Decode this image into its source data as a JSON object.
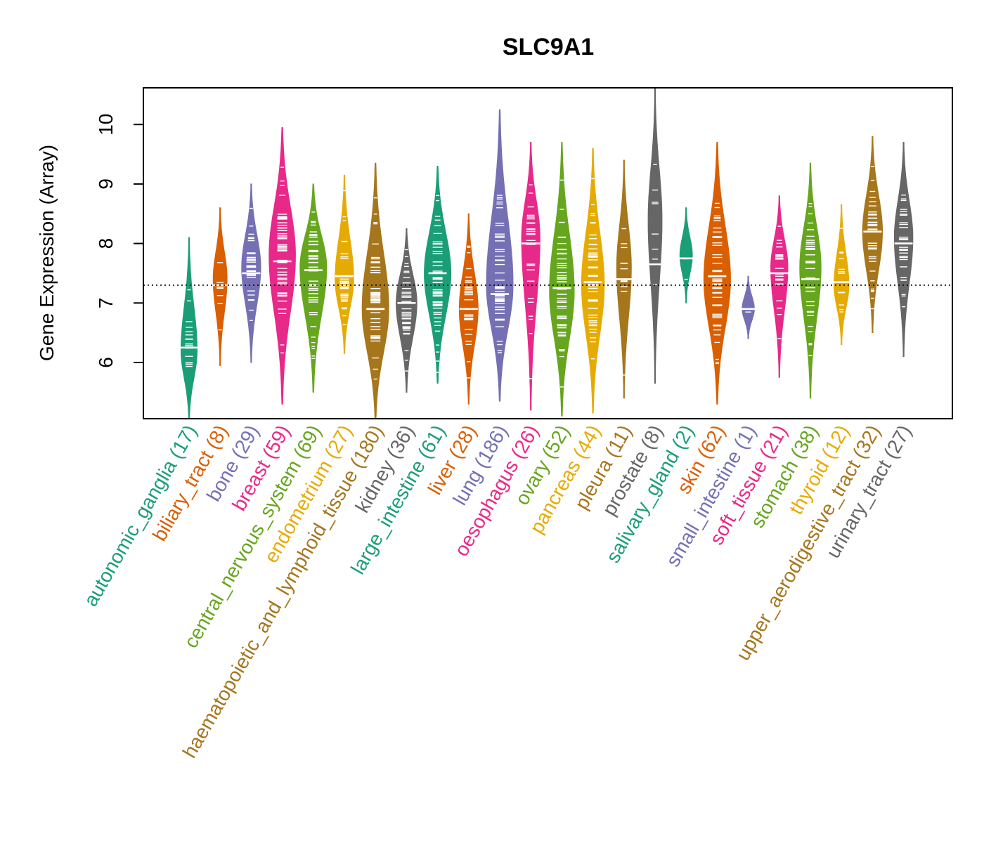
{
  "chart_data": {
    "type": "violin",
    "title": "SLC9A1",
    "ylabel": "Gene Expression (Array)",
    "xlabel": "",
    "ylim": [
      5.0,
      10.6
    ],
    "yticks": [
      6,
      7,
      8,
      9,
      10
    ],
    "reference_line": 7.3,
    "reference_line_style": "dotted",
    "grid": false,
    "legend": "none",
    "categories": [
      {
        "name": "autonomic_ganglia",
        "n": 17,
        "color": "#1B9E77",
        "median": 6.25,
        "min": 5.0,
        "max": 8.1,
        "peak": 6.2
      },
      {
        "name": "biliary_tract",
        "n": 8,
        "color": "#D95F02",
        "median": 7.3,
        "min": 5.95,
        "max": 8.6,
        "peak": 7.4
      },
      {
        "name": "bone",
        "n": 29,
        "color": "#7570B3",
        "median": 7.5,
        "min": 6.0,
        "max": 9.0,
        "peak": 7.6
      },
      {
        "name": "breast",
        "n": 59,
        "color": "#E7298A",
        "median": 7.7,
        "min": 5.3,
        "max": 9.95,
        "peak": 7.8
      },
      {
        "name": "central_nervous_system",
        "n": 69,
        "color": "#66A61E",
        "median": 7.55,
        "min": 5.5,
        "max": 9.0,
        "peak": 7.6
      },
      {
        "name": "endometrium",
        "n": 27,
        "color": "#E6AB02",
        "median": 7.45,
        "min": 6.15,
        "max": 9.15,
        "peak": 7.4
      },
      {
        "name": "haematopoietic_and_lymphoid_tissue",
        "n": 180,
        "color": "#A6761D",
        "median": 6.9,
        "min": 5.0,
        "max": 9.35,
        "peak": 6.9
      },
      {
        "name": "kidney",
        "n": 36,
        "color": "#666666",
        "median": 7.0,
        "min": 5.5,
        "max": 8.25,
        "peak": 7.0
      },
      {
        "name": "large_intestine",
        "n": 61,
        "color": "#1B9E77",
        "median": 7.5,
        "min": 5.65,
        "max": 9.3,
        "peak": 7.5
      },
      {
        "name": "liver",
        "n": 28,
        "color": "#D95F02",
        "median": 6.9,
        "min": 5.3,
        "max": 8.5,
        "peak": 6.9
      },
      {
        "name": "lung",
        "n": 186,
        "color": "#7570B3",
        "median": 7.15,
        "min": 5.35,
        "max": 10.25,
        "peak": 7.3
      },
      {
        "name": "oesophagus",
        "n": 26,
        "color": "#E7298A",
        "median": 8.0,
        "min": 5.2,
        "max": 9.7,
        "peak": 8.1
      },
      {
        "name": "ovary",
        "n": 52,
        "color": "#66A61E",
        "median": 7.25,
        "min": 5.1,
        "max": 9.7,
        "peak": 7.2
      },
      {
        "name": "pancreas",
        "n": 44,
        "color": "#E6AB02",
        "median": 7.35,
        "min": 5.15,
        "max": 9.6,
        "peak": 7.3
      },
      {
        "name": "pleura",
        "n": 11,
        "color": "#A6761D",
        "median": 7.4,
        "min": 5.4,
        "max": 9.4,
        "peak": 7.6
      },
      {
        "name": "prostate",
        "n": 8,
        "color": "#666666",
        "median": 7.65,
        "min": 5.65,
        "max": 10.6,
        "peak": 8.4
      },
      {
        "name": "salivary_gland",
        "n": 2,
        "color": "#1B9E77",
        "median": 7.75,
        "min": 7.0,
        "max": 8.6,
        "peak": 7.8
      },
      {
        "name": "skin",
        "n": 62,
        "color": "#D95F02",
        "median": 7.45,
        "min": 5.3,
        "max": 9.7,
        "peak": 7.4
      },
      {
        "name": "small_intestine",
        "n": 1,
        "color": "#7570B3",
        "median": 6.9,
        "min": 6.4,
        "max": 7.45,
        "peak": 6.9
      },
      {
        "name": "soft_tissue",
        "n": 21,
        "color": "#E7298A",
        "median": 7.5,
        "min": 5.75,
        "max": 8.8,
        "peak": 7.6
      },
      {
        "name": "stomach",
        "n": 38,
        "color": "#66A61E",
        "median": 7.4,
        "min": 5.4,
        "max": 9.35,
        "peak": 7.6
      },
      {
        "name": "thyroid",
        "n": 12,
        "color": "#E6AB02",
        "median": 7.35,
        "min": 6.3,
        "max": 8.65,
        "peak": 7.3
      },
      {
        "name": "upper_aerodigestive_tract",
        "n": 32,
        "color": "#A6761D",
        "median": 8.2,
        "min": 6.5,
        "max": 9.8,
        "peak": 8.2
      },
      {
        "name": "urinary_tract",
        "n": 27,
        "color": "#666666",
        "median": 8.0,
        "min": 6.1,
        "max": 9.7,
        "peak": 8.1
      }
    ]
  }
}
